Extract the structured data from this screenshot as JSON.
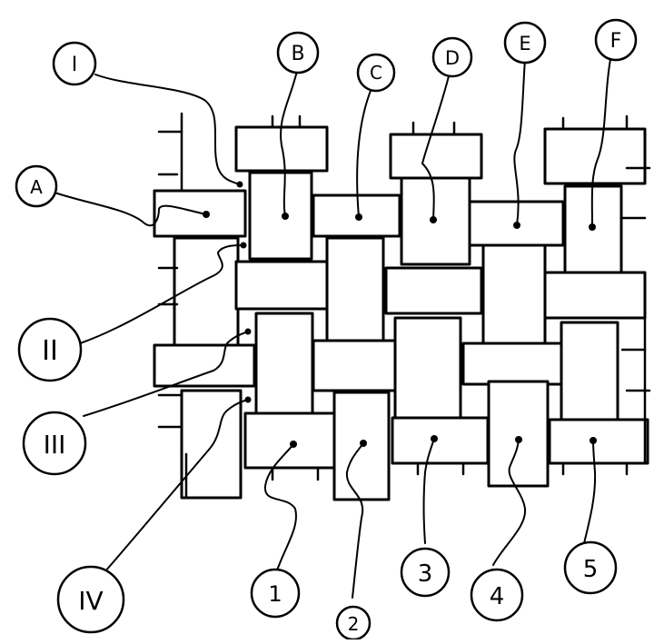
{
  "diagram": {
    "top_labels": [
      "I",
      "B",
      "C",
      "D",
      "E",
      "F"
    ],
    "left_labels": [
      "A",
      "II",
      "III",
      "IV"
    ],
    "bottom_labels": [
      "1",
      "2",
      "3",
      "4",
      "5"
    ]
  }
}
